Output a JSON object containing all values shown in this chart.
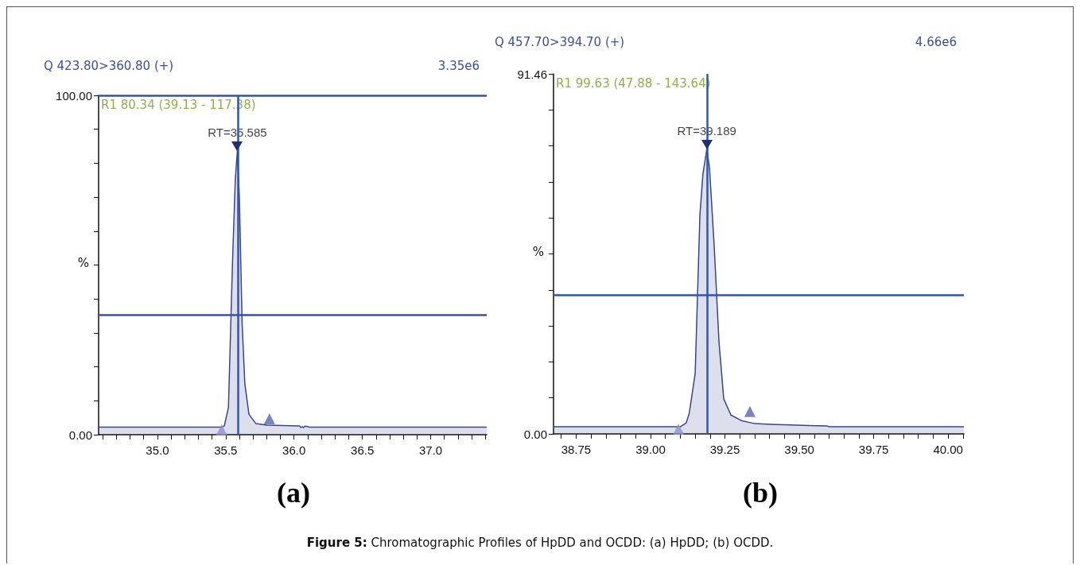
{
  "chart_data": [
    {
      "type": "area",
      "title": "Q 423.80>360.80 (+)",
      "subtitle": "3.35e6",
      "ylabel": "%",
      "annotations": [
        "R1 80.34 (39.13 - 117.38)",
        {
          "text": "RT=35.585",
          "x": 35.585,
          "y": 83.6
        },
        "(a)"
      ],
      "series": [
        {
          "color": "#34478f",
          "x": [
            34.57,
            35.3,
            35.47,
            35.49,
            35.52,
            35.55,
            35.57,
            35.585,
            35.6,
            35.62,
            35.64,
            35.67,
            35.72,
            35.8,
            36.04,
            36.05,
            36.06,
            36.07,
            36.08,
            36.1,
            36.11,
            37.41
          ],
          "values": [
            2.2,
            2.2,
            2.2,
            2.6,
            8,
            51,
            75,
            83.6,
            70,
            33,
            15,
            6,
            3.3,
            2.8,
            2.6,
            2.1,
            2.4,
            2.1,
            2.5,
            2.4,
            2.2,
            2.2
          ]
        },
        {
          "type": "scatter",
          "marker": "triangle",
          "color": "#8a94cc",
          "x": [
            35.47
          ],
          "values": [
            1.4
          ]
        },
        {
          "type": "scatter",
          "marker": "triangle",
          "color": "#5566b4",
          "x": [
            35.82
          ],
          "values": [
            4.7
          ]
        }
      ],
      "xlim": [
        34.57,
        37.41
      ],
      "xticks": [
        {
          "value": 34.6,
          "label": null
        },
        {
          "value": 34.7,
          "label": null
        },
        {
          "value": 34.8,
          "label": null
        },
        {
          "value": 34.9,
          "label": null
        },
        {
          "value": 35,
          "label": "35.0"
        },
        {
          "value": 35.1,
          "label": null
        },
        {
          "value": 35.2,
          "label": null
        },
        {
          "value": 35.3,
          "label": null
        },
        {
          "value": 35.4,
          "label": null
        },
        35.5,
        {
          "value": 35.6,
          "label": null
        },
        {
          "value": 35.7,
          "label": null
        },
        {
          "value": 35.8,
          "label": null
        },
        {
          "value": 35.9,
          "label": null
        },
        {
          "value": 36,
          "label": "36.0"
        },
        {
          "value": 36.1,
          "label": null
        },
        {
          "value": 36.2,
          "label": null
        },
        {
          "value": 36.3,
          "label": null
        },
        {
          "value": 36.4,
          "label": null
        },
        36.5,
        {
          "value": 36.6,
          "label": null
        },
        {
          "value": 36.7,
          "label": null
        },
        {
          "value": 36.8,
          "label": null
        },
        {
          "value": 36.9,
          "label": null
        },
        {
          "value": 37,
          "label": "37.0"
        },
        {
          "value": 37.1,
          "label": null
        },
        {
          "value": 37.2,
          "label": null
        },
        {
          "value": 37.3,
          "label": null
        },
        {
          "value": 37.4,
          "label": null
        }
      ],
      "ylim": [
        0,
        100
      ],
      "yticks": [
        {
          "value": 0,
          "label": "0.00"
        },
        {
          "value": 10,
          "label": null
        },
        {
          "value": 20,
          "label": null
        },
        {
          "value": 30,
          "label": null
        },
        {
          "value": 40,
          "label": null
        },
        {
          "value": 50,
          "label": null
        },
        {
          "value": 60,
          "label": null
        },
        {
          "value": 70,
          "label": null
        },
        {
          "value": 80,
          "label": null
        },
        {
          "value": 90,
          "label": null
        },
        {
          "value": 100,
          "label": "100.00"
        }
      ],
      "ref_lines": [
        {
          "axis": "x",
          "value": 35.585,
          "color": "#3553a8"
        },
        {
          "axis": "y",
          "value": 100,
          "color": "#3553a8"
        },
        {
          "axis": "y",
          "value": 35.4,
          "color": "#3553a8"
        }
      ],
      "grid": false
    },
    {
      "type": "area",
      "title": "Q 457.70>394.70 (+)",
      "subtitle": "4.66e6",
      "ylabel": "%",
      "annotations": [
        "R1 99.63 (47.88 - 143.64)",
        {
          "text": "RT=39.189",
          "x": 39.189,
          "y": 72.3
        },
        "(b)",
        "Figure 5: Chromatographic Profiles of HpDD and OCDD: (a) HpDD; (b) OCDD."
      ],
      "series": [
        {
          "color": "#34478f",
          "x": [
            38.674,
            39.09,
            39.1,
            39.12,
            39.13,
            39.15,
            39.166,
            39.176,
            39.189,
            39.198,
            39.214,
            39.23,
            39.246,
            39.27,
            39.305,
            39.35,
            39.406,
            39.594,
            39.6,
            40.053
          ],
          "values": [
            1.8,
            1.8,
            1.8,
            2.8,
            5.2,
            15.3,
            55.7,
            66,
            72.3,
            67.8,
            47.6,
            23.4,
            8.9,
            4.8,
            3.4,
            2.6,
            2.4,
            2.0,
            1.8,
            1.8
          ]
        },
        {
          "type": "scatter",
          "marker": "triangle",
          "color": "#8a94cc",
          "x": [
            39.094
          ],
          "values": [
            1.2
          ]
        },
        {
          "type": "scatter",
          "marker": "triangle",
          "color": "#5566b4",
          "x": [
            39.334
          ],
          "values": [
            5.7
          ]
        }
      ],
      "xlim": [
        38.674,
        40.053
      ],
      "xticks": [
        {
          "value": 38.7,
          "label": null
        },
        38.75,
        {
          "value": 38.8,
          "label": null
        },
        {
          "value": 38.85,
          "label": null
        },
        {
          "value": 38.9,
          "label": null
        },
        {
          "value": 38.95,
          "label": null
        },
        {
          "value": 39,
          "label": "39.00"
        },
        {
          "value": 39.05,
          "label": null
        },
        {
          "value": 39.1,
          "label": null
        },
        {
          "value": 39.15,
          "label": null
        },
        {
          "value": 39.2,
          "label": null
        },
        39.25,
        {
          "value": 39.3,
          "label": null
        },
        {
          "value": 39.35,
          "label": null
        },
        {
          "value": 39.4,
          "label": null
        },
        {
          "value": 39.45,
          "label": null
        },
        {
          "value": 39.5,
          "label": "39.50"
        },
        {
          "value": 39.55,
          "label": null
        },
        {
          "value": 39.6,
          "label": null
        },
        {
          "value": 39.65,
          "label": null
        },
        {
          "value": 39.7,
          "label": null
        },
        39.75,
        {
          "value": 39.8,
          "label": null
        },
        {
          "value": 39.85,
          "label": null
        },
        {
          "value": 39.9,
          "label": null
        },
        {
          "value": 39.95,
          "label": null
        },
        {
          "value": 40,
          "label": "40.00"
        },
        {
          "value": 40.05,
          "label": null
        }
      ],
      "ylim": [
        0,
        91.46
      ],
      "yticks": [
        {
          "value": 0,
          "label": "0.00"
        },
        {
          "value": 9.146,
          "label": null
        },
        {
          "value": 18.292,
          "label": null
        },
        {
          "value": 27.438,
          "label": null
        },
        {
          "value": 36.584,
          "label": null
        },
        {
          "value": 45.73,
          "label": null
        },
        {
          "value": 54.876,
          "label": null
        },
        {
          "value": 64.022,
          "label": null
        },
        {
          "value": 73.168,
          "label": null
        },
        {
          "value": 82.314,
          "label": null
        },
        91.46
      ],
      "ref_lines": [
        {
          "axis": "x",
          "value": 39.189,
          "color": "#3553a8"
        },
        {
          "axis": "y",
          "value": 35.3,
          "color": "#3553a8"
        }
      ],
      "grid": false
    }
  ]
}
